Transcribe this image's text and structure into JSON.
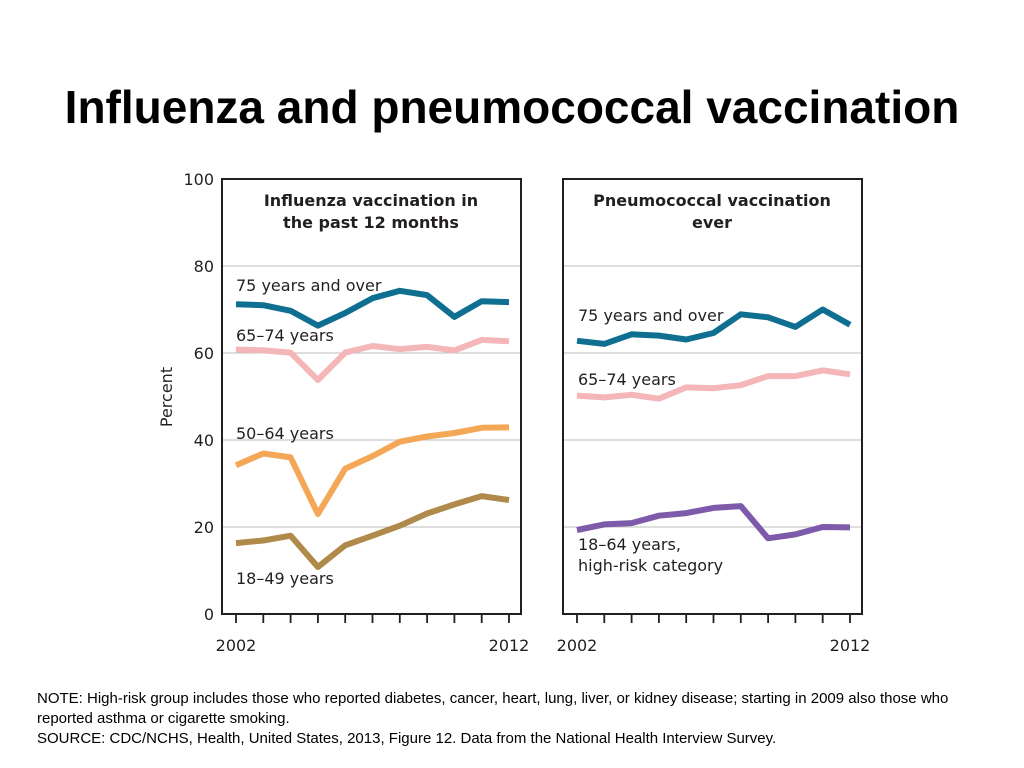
{
  "slide": {
    "title": "Influenza and pneumococcal vaccination",
    "note_lines": [
      "NOTE: High-risk group includes those who reported diabetes, cancer, heart, lung, liver, or kidney disease; starting in 2009 also those who reported asthma or cigarette smoking.",
      "SOURCE: CDC/NCHS, Health, United States, 2013, Figure 12. Data from the National Health Interview Survey."
    ]
  },
  "chart_data": [
    {
      "type": "line",
      "title_lines": [
        "Influenza vaccination in",
        "the past 12 months"
      ],
      "ylabel": "Percent",
      "ylim": [
        0,
        100
      ],
      "yticks": [
        0,
        20,
        40,
        60,
        80,
        100
      ],
      "x": [
        2002,
        2003,
        2004,
        2005,
        2006,
        2007,
        2008,
        2009,
        2010,
        2011,
        2012
      ],
      "xtick_labels": [
        "2002",
        "2012"
      ],
      "grid": "horizontal",
      "series": [
        {
          "name": "75 years and over",
          "color": "#0f6f90",
          "values": [
            71.2,
            71.0,
            69.7,
            66.3,
            69.2,
            72.6,
            74.3,
            73.3,
            68.3,
            71.9,
            71.7
          ]
        },
        {
          "name": "65–74 years",
          "color": "#f4b6b8",
          "values": [
            60.8,
            60.6,
            60.1,
            53.8,
            60.1,
            61.6,
            60.9,
            61.4,
            60.6,
            63.0,
            62.7
          ]
        },
        {
          "name": "50–64 years",
          "color": "#f4a857",
          "values": [
            34.2,
            36.9,
            36.0,
            23.0,
            33.4,
            36.3,
            39.6,
            40.8,
            41.6,
            42.8,
            42.9
          ]
        },
        {
          "name": "18–49 years",
          "color": "#b08a4a",
          "values": [
            16.3,
            16.9,
            18.0,
            10.8,
            15.8,
            18.0,
            20.3,
            23.1,
            25.2,
            27.1,
            26.2
          ]
        }
      ]
    },
    {
      "type": "line",
      "title_lines": [
        "Pneumococcal vaccination",
        "ever"
      ],
      "ylim": [
        0,
        100
      ],
      "yticks": [
        0,
        20,
        40,
        60,
        80,
        100
      ],
      "x": [
        2002,
        2003,
        2004,
        2005,
        2006,
        2007,
        2008,
        2009,
        2010,
        2011,
        2012
      ],
      "xtick_labels": [
        "2002",
        "2012"
      ],
      "grid": "horizontal",
      "series": [
        {
          "name": "75 years and over",
          "color": "#0f6f90",
          "values": [
            62.8,
            62.1,
            64.3,
            64.0,
            63.1,
            64.6,
            68.9,
            68.2,
            66.0,
            70.0,
            66.5
          ]
        },
        {
          "name": "65–74 years",
          "color": "#f4b6b8",
          "values": [
            50.2,
            49.8,
            50.4,
            49.5,
            52.1,
            51.9,
            52.6,
            54.7,
            54.7,
            56.0,
            55.1
          ]
        },
        {
          "name_lines": [
            "18–64 years,",
            "high-risk category"
          ],
          "color": "#7d5aaa",
          "values": [
            19.3,
            20.6,
            20.9,
            22.6,
            23.2,
            24.4,
            24.8,
            17.4,
            18.3,
            20.0,
            19.9
          ]
        }
      ]
    }
  ]
}
